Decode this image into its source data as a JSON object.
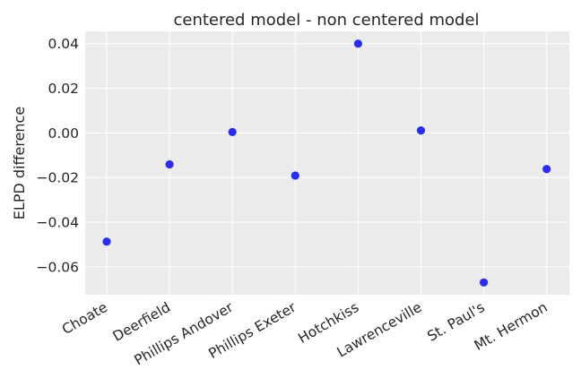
{
  "chart_data": {
    "type": "scatter",
    "title": "centered model - non centered model",
    "xlabel": "",
    "ylabel": "ELPD difference",
    "categories": [
      "Choate",
      "Deerfield",
      "Phillips Andover",
      "Phillips Exeter",
      "Hotchkiss",
      "Lawrenceville",
      "St. Paul's",
      "Mt. Hermon"
    ],
    "values": [
      -0.0487,
      -0.0141,
      0.0004,
      -0.0191,
      0.04,
      0.0011,
      -0.067,
      -0.0162
    ],
    "ylim": [
      -0.0725,
      0.0455
    ],
    "yticks": [
      0.04,
      0.02,
      0.0,
      -0.02,
      -0.04,
      -0.06
    ],
    "ytick_labels": [
      "0.04",
      "0.02",
      "0.00",
      "−0.02",
      "−0.04",
      "−0.06"
    ],
    "grid": true,
    "background_color": "#ebebeb",
    "grid_color": "#ffffff",
    "marker_color": "#2a2eec"
  }
}
